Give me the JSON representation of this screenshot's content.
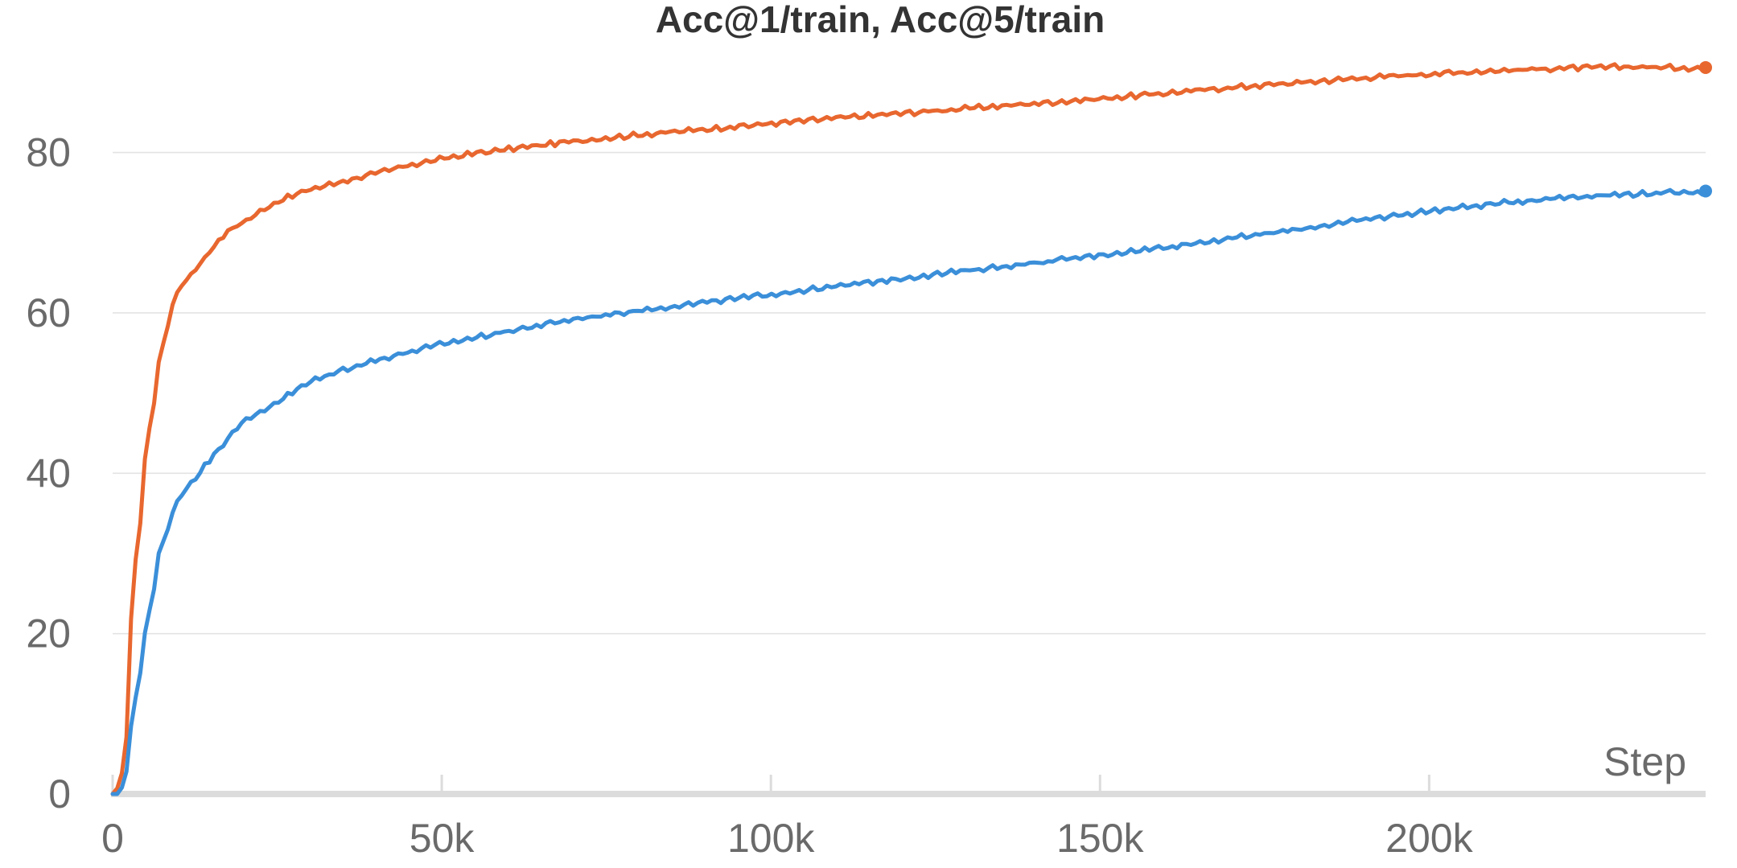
{
  "chart_data": {
    "type": "line",
    "title": "Acc@1/train, Acc@5/train",
    "xlabel": "Step",
    "ylabel": "",
    "xlim": [
      0,
      242000
    ],
    "ylim": [
      0,
      92
    ],
    "x_ticks": [
      0,
      50000,
      100000,
      150000,
      200000
    ],
    "x_tick_labels": [
      "0",
      "50k",
      "100k",
      "150k",
      "200k"
    ],
    "y_ticks": [
      0,
      20,
      40,
      60,
      80
    ],
    "y_tick_labels": [
      "0",
      "20",
      "40",
      "60",
      "80"
    ],
    "grid": true,
    "legend": "none",
    "series": [
      {
        "color": "#e8672f",
        "x": [
          0,
          1000,
          2000,
          3000,
          4000,
          5000,
          6000,
          7000,
          8000,
          9000,
          10000,
          11000,
          12000,
          13000,
          14000,
          15000,
          17000,
          19000,
          22000,
          25000,
          30000,
          35000,
          40000,
          45000,
          50000,
          55000,
          60000,
          70000,
          80000,
          90000,
          100000,
          110000,
          120000,
          130000,
          140000,
          150000,
          160000,
          170000,
          180000,
          190000,
          200000,
          210000,
          220000,
          230000,
          242000
        ],
        "values": [
          0,
          1,
          5,
          26,
          32,
          43,
          47,
          54,
          57,
          61,
          63,
          64,
          65,
          66,
          67,
          68,
          70,
          71,
          72.5,
          74,
          75.5,
          76.5,
          77.5,
          78.5,
          79.3,
          80,
          80.5,
          81.5,
          82.3,
          83,
          83.7,
          84.4,
          85,
          85.6,
          86.2,
          86.8,
          87.5,
          88.2,
          88.8,
          89.4,
          89.9,
          90.3,
          90.6,
          90.8,
          90.6
        ]
      },
      {
        "color": "#3b8fd9",
        "x": [
          0,
          1000,
          2000,
          3000,
          4000,
          5000,
          6000,
          7000,
          8000,
          9000,
          10000,
          11000,
          12000,
          13000,
          14000,
          15000,
          17000,
          19000,
          22000,
          25000,
          30000,
          35000,
          40000,
          45000,
          50000,
          55000,
          60000,
          70000,
          80000,
          90000,
          100000,
          110000,
          120000,
          130000,
          140000,
          150000,
          160000,
          170000,
          180000,
          190000,
          200000,
          210000,
          220000,
          230000,
          242000
        ],
        "values": [
          0,
          0,
          2,
          10,
          14,
          21,
          24,
          30,
          32,
          35,
          37,
          38,
          39,
          40,
          41,
          42,
          44,
          46,
          47.5,
          49,
          51.5,
          53,
          54.2,
          55.2,
          56.2,
          57,
          57.8,
          59.3,
          60.4,
          61.4,
          62.4,
          63.4,
          64.4,
          65.4,
          66.3,
          67.3,
          68.3,
          69.4,
          70.5,
          71.7,
          72.8,
          73.7,
          74.5,
          74.9,
          75.2
        ]
      }
    ]
  }
}
